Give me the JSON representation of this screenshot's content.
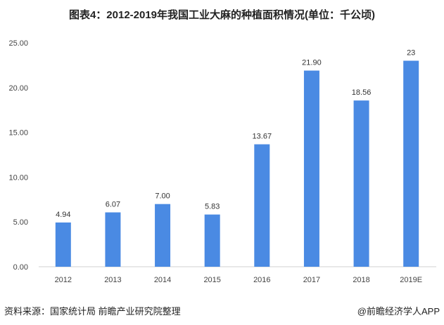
{
  "title": "图表4：2012-2019年我国工业大麻的种植面积情况(单位：千公顷)",
  "source": "资料来源：国家统计局 前瞻产业研究院整理",
  "credit": "@前瞻经济学人APP",
  "chart_data": {
    "type": "bar",
    "title": "图表4：2012-2019年我国工业大麻的种植面积情况(单位：千公顷)",
    "categories": [
      "2012",
      "2013",
      "2014",
      "2015",
      "2016",
      "2017",
      "2018",
      "2019E"
    ],
    "values": [
      4.94,
      6.07,
      7.0,
      5.83,
      13.67,
      21.9,
      18.56,
      23
    ],
    "data_labels": [
      "4.94",
      "6.07",
      "7.00",
      "5.83",
      "13.67",
      "21.90",
      "18.56",
      "23"
    ],
    "yticks": [
      "0.00",
      "5.00",
      "10.00",
      "15.00",
      "20.00",
      "25.00"
    ],
    "ylim": [
      0,
      25
    ],
    "xlabel": "",
    "ylabel": "",
    "bar_color": "#4a8ae3",
    "grid": false
  }
}
